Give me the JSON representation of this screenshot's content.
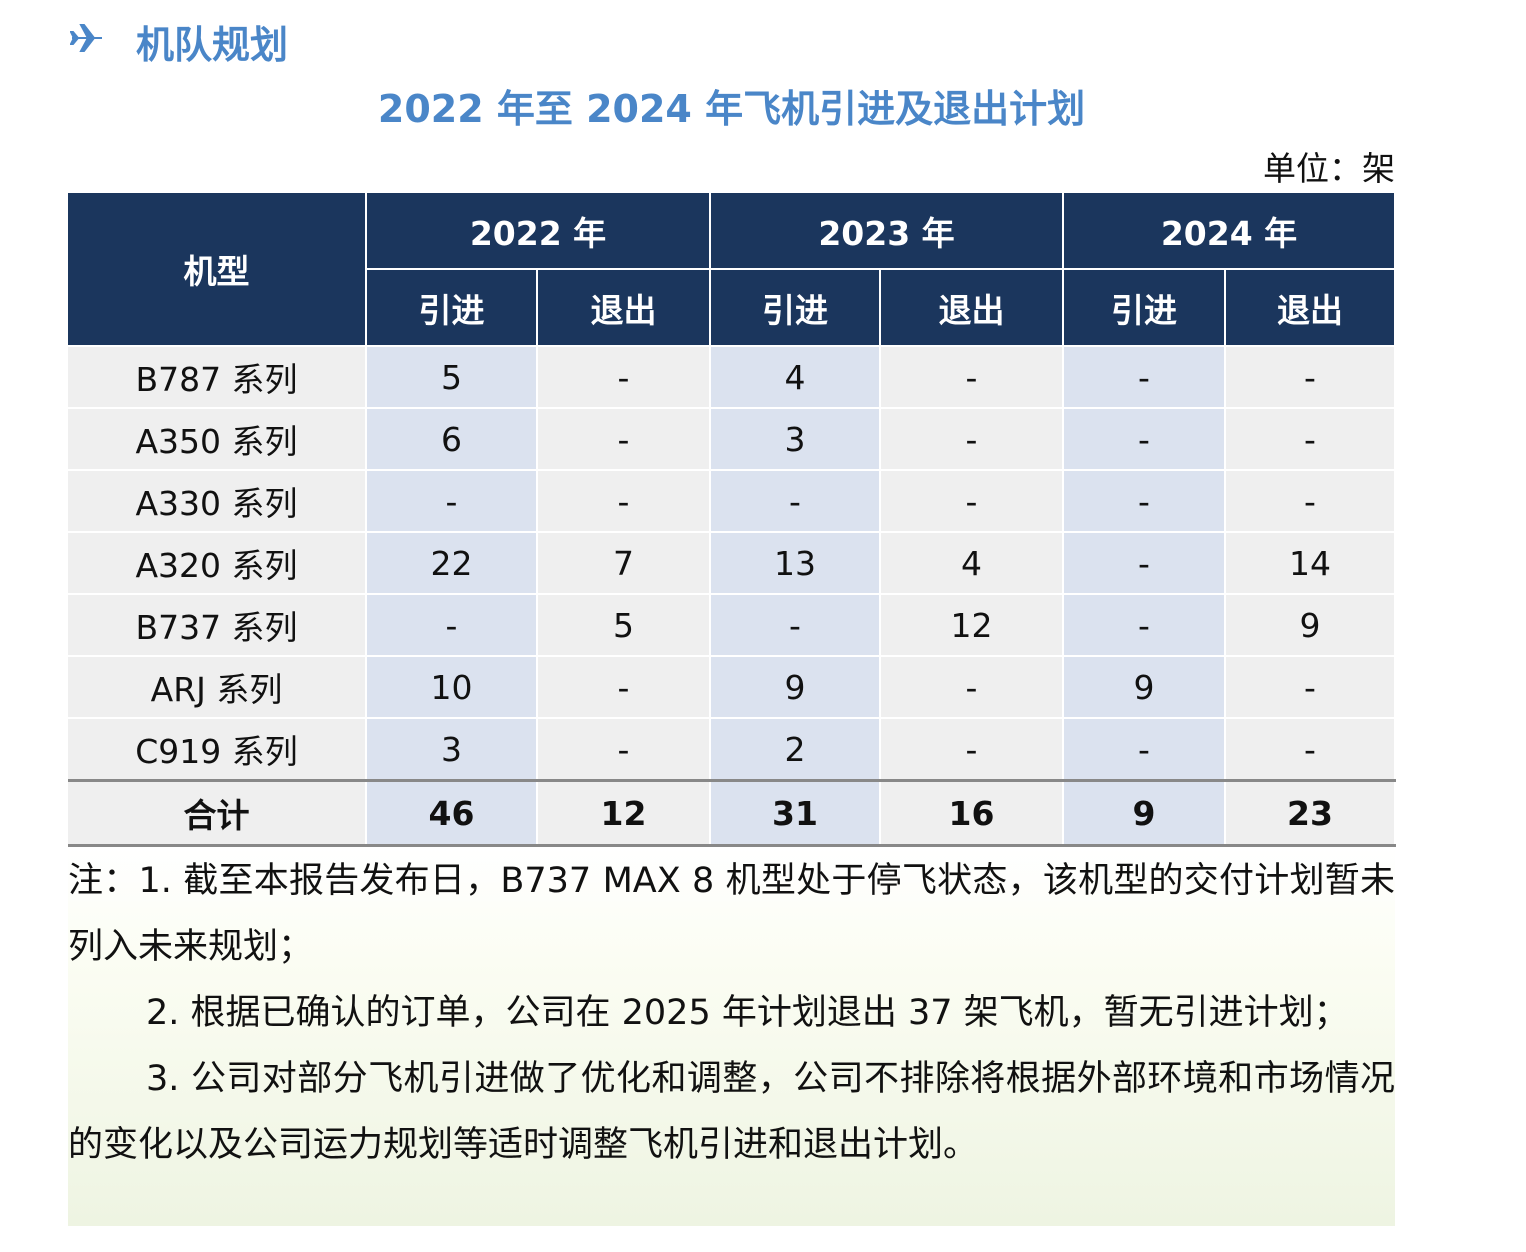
{
  "header": {
    "title": "机队规划"
  },
  "table": {
    "title": "2022 年至 2024 年飞机引进及退出计划",
    "unit": "单位：架",
    "corner": "机型",
    "years": [
      "2022 年",
      "2023 年",
      "2024 年"
    ],
    "subheaders": [
      "引进",
      "退出",
      "引进",
      "退出",
      "引进",
      "退出"
    ],
    "rows": [
      [
        "B787 系列",
        5,
        "-",
        4,
        "-",
        "-",
        "-"
      ],
      [
        "A350 系列",
        6,
        "-",
        3,
        "-",
        "-",
        "-"
      ],
      [
        "A330 系列",
        "-",
        "-",
        "-",
        "-",
        "-",
        "-"
      ],
      [
        "A320 系列",
        22,
        7,
        13,
        4,
        "-",
        14
      ],
      [
        "B737 系列",
        "-",
        5,
        "-",
        12,
        "-",
        9
      ],
      [
        "ARJ 系列",
        10,
        "-",
        9,
        "-",
        9,
        "-"
      ],
      [
        "C919 系列",
        3,
        "-",
        2,
        "-",
        "-",
        "-"
      ]
    ],
    "total": [
      "合计",
      46,
      12,
      31,
      16,
      9,
      23
    ]
  },
  "notes": [
    "注：1. 截至本报告发布日，B737 MAX 8 机型处于停飞状态，该机型的交付计划暂未列入未来规划；",
    "2. 根据已确认的订单，公司在 2025 年计划退出 37 架飞机，暂无引进计划；",
    "3. 公司对部分飞机引进做了优化和调整，公司不排除将根据外部环境和市场情况的变化以及公司运力规划等适时调整飞机引进和退出计划。"
  ]
}
